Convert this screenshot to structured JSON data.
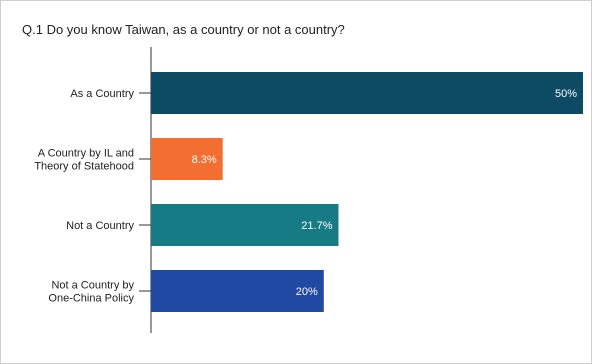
{
  "chart_data": {
    "type": "bar",
    "orientation": "horizontal",
    "title": "Q.1 Do you know Taiwan, as a country or not a country?",
    "categories": [
      [
        "As a Country"
      ],
      [
        "A Country by IL and",
        "Theory of Statehood"
      ],
      [
        "Not a Country"
      ],
      [
        "Not a Country by",
        "One-China Policy"
      ]
    ],
    "values": [
      50,
      8.3,
      21.7,
      20
    ],
    "value_labels": [
      "50%",
      "8.3%",
      "21.7%",
      "20%"
    ],
    "colors": [
      "#0d4a64",
      "#f26f31",
      "#177b86",
      "#1f49a3"
    ],
    "xlim": [
      0,
      50
    ],
    "grid": false,
    "legend": "none"
  }
}
